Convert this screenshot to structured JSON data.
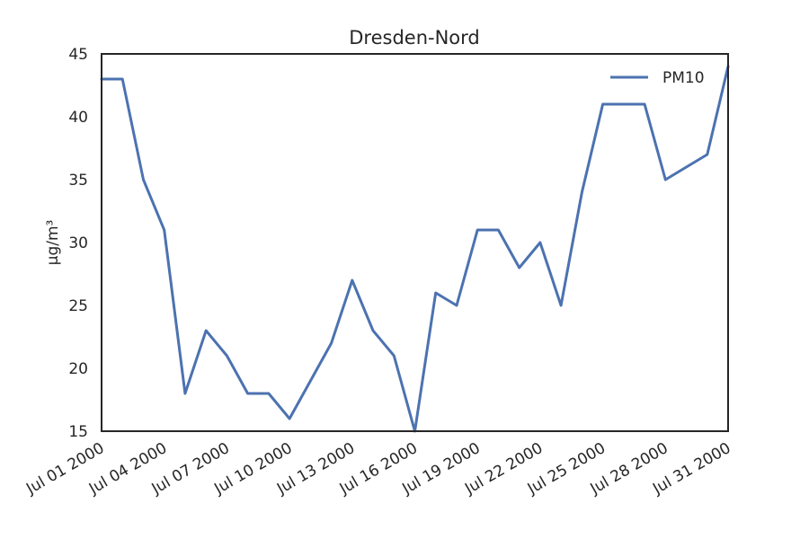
{
  "chart_data": {
    "type": "line",
    "title": "Dresden-Nord",
    "xlabel": "",
    "ylabel": "µg/m³",
    "x": [
      "2000-07-01",
      "2000-07-02",
      "2000-07-03",
      "2000-07-04",
      "2000-07-05",
      "2000-07-06",
      "2000-07-07",
      "2000-07-08",
      "2000-07-09",
      "2000-07-10",
      "2000-07-12",
      "2000-07-13",
      "2000-07-14",
      "2000-07-15",
      "2000-07-16",
      "2000-07-17",
      "2000-07-18",
      "2000-07-19",
      "2000-07-20",
      "2000-07-21",
      "2000-07-22",
      "2000-07-23",
      "2000-07-24",
      "2000-07-25",
      "2000-07-26",
      "2000-07-27",
      "2000-07-28",
      "2000-07-29",
      "2000-07-30",
      "2000-07-31"
    ],
    "series": [
      {
        "name": "PM10",
        "color": "#4c72b0",
        "values": [
          43,
          43,
          35,
          31,
          18,
          23,
          21,
          18,
          18,
          16,
          22,
          27,
          23,
          21,
          15,
          26,
          25,
          31,
          31,
          28,
          30,
          25,
          34,
          41,
          41,
          41,
          35,
          36,
          37,
          44
        ]
      }
    ],
    "xlim": [
      "2000-07-01",
      "2000-07-31"
    ],
    "ylim": [
      15,
      45
    ],
    "xticks": [
      "Jul 01 2000",
      "Jul 04 2000",
      "Jul 07 2000",
      "Jul 10 2000",
      "Jul 13 2000",
      "Jul 16 2000",
      "Jul 19 2000",
      "Jul 22 2000",
      "Jul 25 2000",
      "Jul 28 2000",
      "Jul 31 2000"
    ],
    "yticks": [
      "15",
      "20",
      "25",
      "30",
      "35",
      "40",
      "45"
    ],
    "grid": false,
    "legend": "top-right"
  }
}
